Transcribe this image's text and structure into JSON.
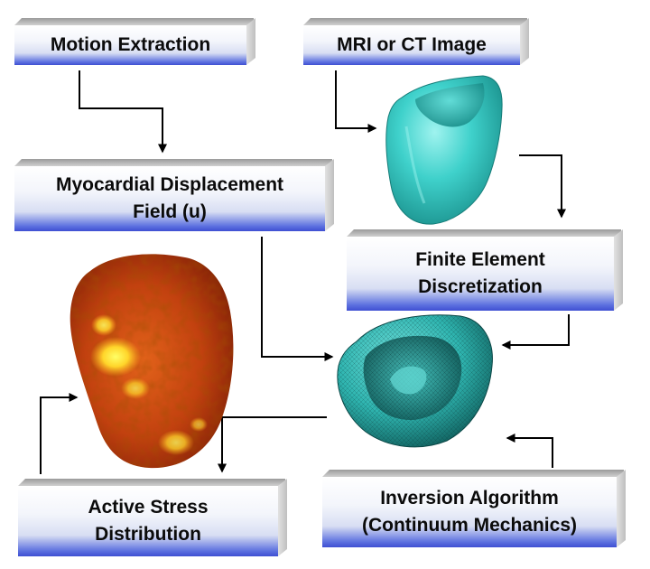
{
  "diagram": {
    "boxes": {
      "motion_extraction": {
        "lines": [
          "Motion Extraction"
        ]
      },
      "mri_ct_image": {
        "lines": [
          "MRI or CT Image"
        ]
      },
      "displacement_field": {
        "lines": [
          "Myocardial Displacement",
          "Field (u)"
        ]
      },
      "finite_element": {
        "lines": [
          "Finite Element",
          "Discretization"
        ]
      },
      "active_stress": {
        "lines": [
          "Active Stress",
          "Distribution"
        ]
      },
      "inversion_algorithm": {
        "lines": [
          "Inversion Algorithm",
          "(Continuum Mechanics)"
        ]
      }
    },
    "images": {
      "heart_surface": "cyan-smooth-heart-mesh",
      "heart_mesh": "cyan-triangulated-heart-mesh",
      "stress_map": "red-yellow-active-stress-heart"
    },
    "colors": {
      "box_gradient_bottom": "#3f4fd2",
      "box_bevel": "#c9c9c9",
      "mesh_cyan": "#35c9c4",
      "stress_red": "#b83a0c",
      "stress_yellow": "#ffe033",
      "arrow": "#000000"
    }
  }
}
